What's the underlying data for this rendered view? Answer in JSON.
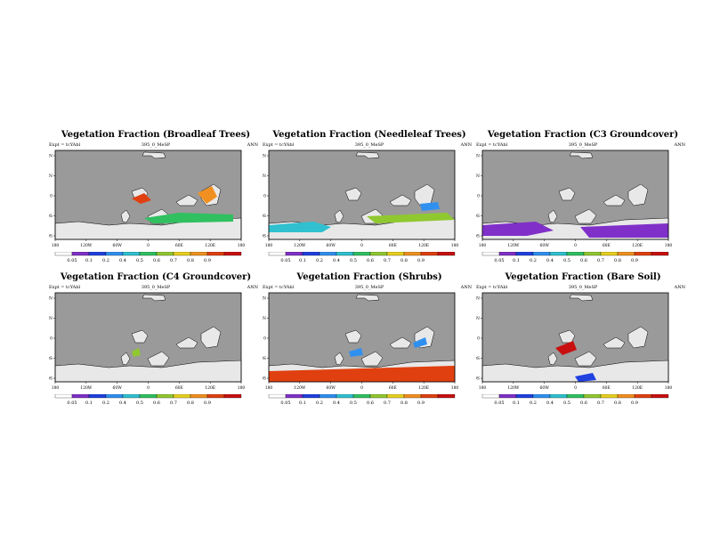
{
  "experiment_label": "Expt = tcYAbl",
  "run_label": "395_0_MeSP",
  "season_label": "ANN",
  "colors": {
    "ocean": "#9a9a9a",
    "land_background": "#e8e8e8",
    "scale": [
      "#ffffff",
      "#8030c8",
      "#2040e0",
      "#3090f0",
      "#30c0d0",
      "#30c060",
      "#90c830",
      "#e8d020",
      "#f09020",
      "#e04010",
      "#c81010"
    ]
  },
  "axes": {
    "lat_labels": [
      "80N",
      "40N",
      "0",
      "40S",
      "80S"
    ],
    "lon_labels": [
      "180",
      "120W",
      "60W",
      "0",
      "60E",
      "120E",
      "180"
    ]
  },
  "colorbar": {
    "ticks": [
      "0.05",
      "0.1",
      "0.2",
      "0.4",
      "0.5",
      "0.6",
      "0.7",
      "0.8",
      "0.9"
    ]
  },
  "panels": [
    {
      "title": "Vegetation Fraction (Broadleaf Trees)",
      "variable": "broadleaf-trees"
    },
    {
      "title": "Vegetation Fraction (Needleleaf Trees)",
      "variable": "needleleaf-trees"
    },
    {
      "title": "Vegetation Fraction (C3 Groundcover)",
      "variable": "c3-groundcover"
    },
    {
      "title": "Vegetation Fraction (C4 Groundcover)",
      "variable": "c4-groundcover"
    },
    {
      "title": "Vegetation Fraction (Shrubs)",
      "variable": "shrubs"
    },
    {
      "title": "Vegetation Fraction (Bare Soil)",
      "variable": "bare-soil"
    }
  ]
}
